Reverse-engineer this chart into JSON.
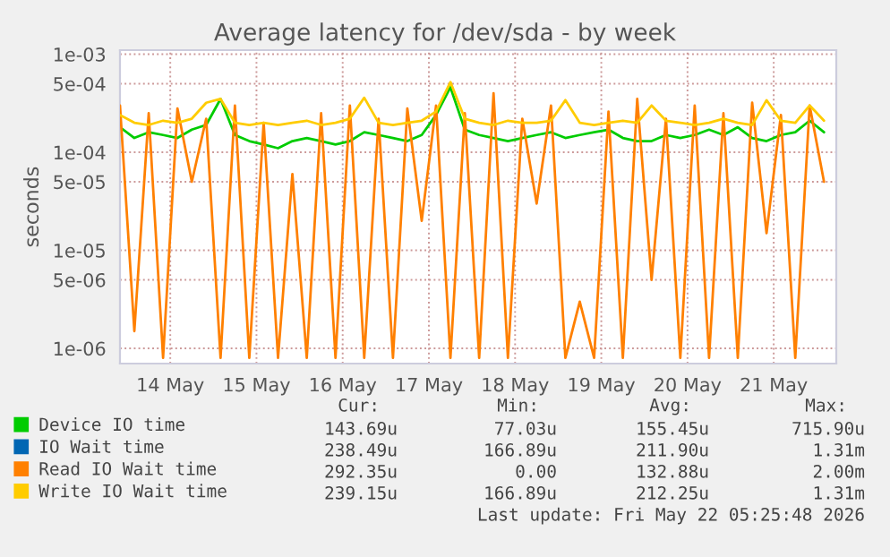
{
  "chart_data": {
    "type": "line",
    "title": "Average latency for /dev/sda - by week",
    "ylabel": "seconds",
    "log": true,
    "grid": true,
    "legend": "bottom",
    "marker": "none",
    "line_style": "solid",
    "ylim": [
      7e-07,
      0.0011
    ],
    "yticks": [
      {
        "value": 1e-06,
        "label": "1e-06"
      },
      {
        "value": 5e-06,
        "label": "5e-06"
      },
      {
        "value": 1e-05,
        "label": "1e-05"
      },
      {
        "value": 5e-05,
        "label": "5e-05"
      },
      {
        "value": 0.0001,
        "label": "1e-04"
      },
      {
        "value": 0.0005,
        "label": "5e-04"
      },
      {
        "value": 0.001,
        "label": "1e-03"
      }
    ],
    "xlim": [
      "2026-05-13T22:00",
      "2026-05-22T05:25"
    ],
    "xticks": [
      {
        "value": "2026-05-14T12:00",
        "label": "14 May"
      },
      {
        "value": "2026-05-15T12:00",
        "label": "15 May"
      },
      {
        "value": "2026-05-16T12:00",
        "label": "16 May"
      },
      {
        "value": "2026-05-17T12:00",
        "label": "17 May"
      },
      {
        "value": "2026-05-18T12:00",
        "label": "18 May"
      },
      {
        "value": "2026-05-19T12:00",
        "label": "19 May"
      },
      {
        "value": "2026-05-20T12:00",
        "label": "20 May"
      },
      {
        "value": "2026-05-21T12:00",
        "label": "21 May"
      }
    ],
    "x": [
      "2026-05-13T22:00",
      "2026-05-14T02:00",
      "2026-05-14T06:00",
      "2026-05-14T10:00",
      "2026-05-14T14:00",
      "2026-05-14T18:00",
      "2026-05-14T22:00",
      "2026-05-15T02:00",
      "2026-05-15T06:00",
      "2026-05-15T10:00",
      "2026-05-15T14:00",
      "2026-05-15T18:00",
      "2026-05-15T22:00",
      "2026-05-16T02:00",
      "2026-05-16T06:00",
      "2026-05-16T10:00",
      "2026-05-16T14:00",
      "2026-05-16T18:00",
      "2026-05-16T22:00",
      "2026-05-17T02:00",
      "2026-05-17T06:00",
      "2026-05-17T10:00",
      "2026-05-17T14:00",
      "2026-05-17T18:00",
      "2026-05-17T22:00",
      "2026-05-18T02:00",
      "2026-05-18T06:00",
      "2026-05-18T10:00",
      "2026-05-18T14:00",
      "2026-05-18T18:00",
      "2026-05-18T22:00",
      "2026-05-19T02:00",
      "2026-05-19T06:00",
      "2026-05-19T10:00",
      "2026-05-19T14:00",
      "2026-05-19T18:00",
      "2026-05-19T22:00",
      "2026-05-20T02:00",
      "2026-05-20T06:00",
      "2026-05-20T10:00",
      "2026-05-20T14:00",
      "2026-05-20T18:00",
      "2026-05-20T22:00",
      "2026-05-21T02:00",
      "2026-05-21T06:00",
      "2026-05-21T10:00",
      "2026-05-21T14:00",
      "2026-05-21T18:00",
      "2026-05-21T22:00",
      "2026-05-22T02:00"
    ],
    "series": [
      {
        "name": "Device IO time",
        "color": "#00cc00",
        "values": [
          0.00018,
          0.00014,
          0.00016,
          0.00015,
          0.00014,
          0.00017,
          0.00019,
          0.00035,
          0.00015,
          0.00013,
          0.00012,
          0.00011,
          0.00013,
          0.00014,
          0.00013,
          0.00012,
          0.00013,
          0.00016,
          0.00015,
          0.00014,
          0.00013,
          0.00015,
          0.00024,
          0.00046,
          0.00017,
          0.00015,
          0.00014,
          0.00013,
          0.00014,
          0.00015,
          0.00016,
          0.00014,
          0.00015,
          0.00016,
          0.00017,
          0.00014,
          0.00013,
          0.00013,
          0.00015,
          0.00014,
          0.00015,
          0.00017,
          0.00015,
          0.00018,
          0.00014,
          0.00013,
          0.00015,
          0.00016,
          0.00021,
          0.00016
        ]
      },
      {
        "name": "IO Wait time",
        "color": "#0066b3",
        "values": [
          null,
          null,
          null,
          null,
          null,
          null,
          null,
          null,
          null,
          null,
          null,
          null,
          null,
          null,
          null,
          null,
          null,
          null,
          null,
          null,
          null,
          null,
          null,
          null,
          null,
          null,
          null,
          null,
          null,
          null,
          null,
          null,
          null,
          null,
          null,
          null,
          null,
          null,
          null,
          null,
          null,
          null,
          null,
          null,
          null,
          null,
          null,
          null,
          null,
          null
        ]
      },
      {
        "name": "Read IO Wait time",
        "color": "#ff8000",
        "values": [
          0.0003,
          1.5e-06,
          0.00025,
          8e-07,
          0.00028,
          5e-05,
          0.00022,
          8e-07,
          0.0003,
          8e-07,
          0.0002,
          8e-07,
          6e-05,
          8e-07,
          0.00025,
          8e-07,
          0.0003,
          8e-07,
          0.00022,
          8e-07,
          0.00028,
          2e-05,
          0.0003,
          8e-07,
          0.00025,
          8e-07,
          0.0004,
          8e-07,
          0.00022,
          3e-05,
          0.0003,
          8e-07,
          3e-06,
          8e-07,
          0.00026,
          8e-07,
          0.00035,
          5e-06,
          0.00022,
          8e-07,
          0.0003,
          8e-07,
          0.00025,
          8e-07,
          0.00032,
          1.5e-05,
          0.00024,
          8e-07,
          0.0003,
          5e-05
        ]
      },
      {
        "name": "Write IO Wait time",
        "color": "#ffcc00",
        "values": [
          0.00024,
          0.0002,
          0.00019,
          0.00021,
          0.0002,
          0.00022,
          0.00032,
          0.00035,
          0.0002,
          0.00019,
          0.0002,
          0.00019,
          0.0002,
          0.00021,
          0.00019,
          0.0002,
          0.00022,
          0.00036,
          0.0002,
          0.00019,
          0.0002,
          0.00021,
          0.00026,
          0.00052,
          0.00022,
          0.0002,
          0.00019,
          0.00021,
          0.0002,
          0.0002,
          0.00021,
          0.00034,
          0.0002,
          0.00019,
          0.0002,
          0.00021,
          0.0002,
          0.0003,
          0.00021,
          0.0002,
          0.00019,
          0.0002,
          0.00022,
          0.0002,
          0.00019,
          0.00034,
          0.00021,
          0.0002,
          0.0003,
          0.00021
        ]
      }
    ],
    "annotations": [
      "Cur:",
      "Min:",
      "Avg:",
      "Max:",
      "143.69u",
      "77.03u",
      "155.45u",
      "715.90u",
      "238.49u",
      "166.89u",
      "211.90u",
      "1.31m",
      "292.35u",
      "0.00",
      "132.88u",
      "2.00m",
      "239.15u",
      "166.89u",
      "212.25u",
      "1.31m",
      "Last update: Fri May 22 05:25:48 2026"
    ]
  }
}
